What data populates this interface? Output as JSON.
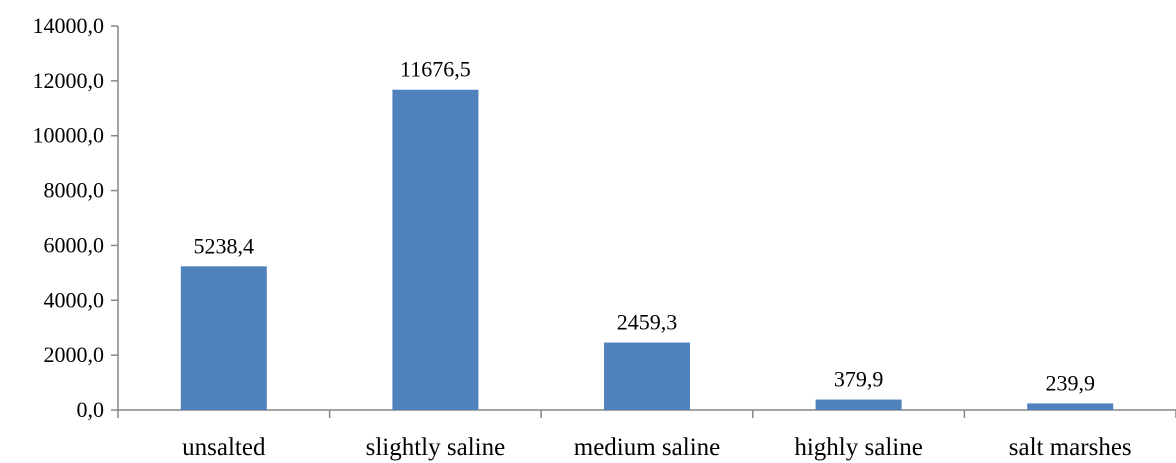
{
  "chart_data": {
    "type": "bar",
    "categories": [
      "unsalted",
      "slightly saline",
      "medium saline",
      "highly saline",
      "salt marshes"
    ],
    "values": [
      5238.4,
      11676.5,
      2459.3,
      379.9,
      239.9
    ],
    "data_labels": [
      "5238,4",
      "11676,5",
      "2459,3",
      "379,9",
      "239,9"
    ],
    "y_ticks": [
      0,
      2000,
      4000,
      6000,
      8000,
      10000,
      12000,
      14000
    ],
    "y_tick_labels": [
      "0,0",
      "2000,0",
      "4000,0",
      "6000,0",
      "8000,0",
      "10000,0",
      "12000,0",
      "14000,0"
    ],
    "ylim": [
      0,
      14000
    ],
    "grid": false,
    "legend": "none",
    "title": "",
    "xlabel": "",
    "ylabel": "",
    "colors": {
      "bar": "#4f81bd",
      "axis": "#868686",
      "text": "#000000"
    }
  }
}
